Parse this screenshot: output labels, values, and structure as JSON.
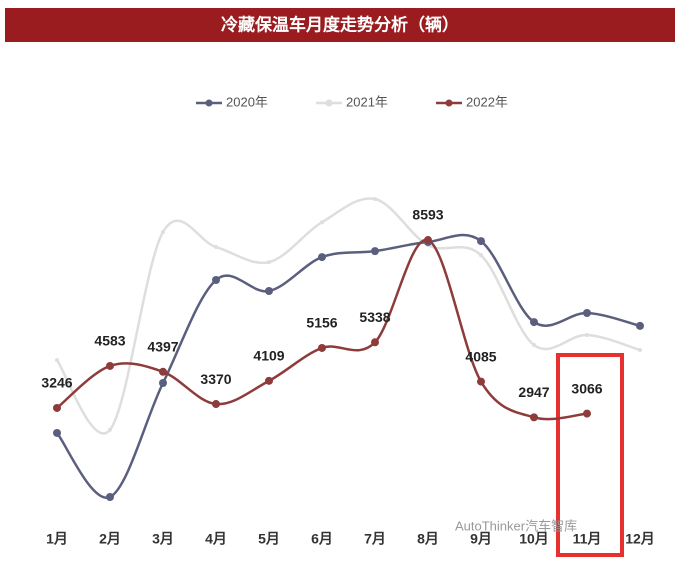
{
  "chart_data": {
    "type": "line",
    "title": "冷藏保温车月度走势分析（辆）",
    "categories": [
      "1月",
      "2月",
      "3月",
      "4月",
      "5月",
      "6月",
      "7月",
      "8月",
      "9月",
      "10月",
      "11月",
      "12月"
    ],
    "series": [
      {
        "name": "2020年",
        "color": "#5b5f7e",
        "values": [
          2450,
          410,
          4040,
          7320,
          6970,
          8050,
          8240,
          8530,
          8560,
          5980,
          6270,
          5860
        ]
      },
      {
        "name": "2021年",
        "color": "#dedede",
        "values": [
          4770,
          2550,
          8850,
          8370,
          7890,
          9160,
          9900,
          8430,
          8110,
          5250,
          5570,
          5090
        ]
      },
      {
        "name": "2022年",
        "color": "#8e3b3b",
        "values": [
          3246,
          4583,
          4397,
          3370,
          4109,
          5156,
          5338,
          8593,
          4085,
          2947,
          3066,
          null
        ]
      }
    ],
    "labeled_series": "2022年",
    "watermark": "AutoThinker汽车智库"
  }
}
